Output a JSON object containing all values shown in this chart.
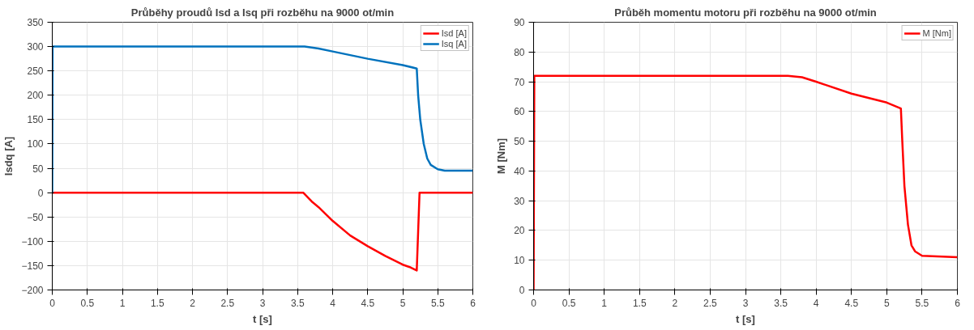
{
  "chart_data": [
    {
      "type": "line",
      "title": "Průběhy proudů Isd a Isq při rozběhu na 9000 ot/min",
      "xlabel": "t [s]",
      "ylabel": "Isdq [A]",
      "xlim": [
        0,
        6
      ],
      "ylim": [
        -200,
        350
      ],
      "xticks": [
        0,
        0.5,
        1,
        1.5,
        2,
        2.5,
        3,
        3.5,
        4,
        4.5,
        5,
        5.5,
        6
      ],
      "yticks": [
        -200,
        -150,
        -100,
        -50,
        0,
        50,
        100,
        150,
        200,
        250,
        300,
        350
      ],
      "grid": true,
      "legend": "top right",
      "series": [
        {
          "name": "Isd [A]",
          "color": "#ff0000",
          "x": [
            0,
            0.5,
            1,
            1.5,
            2,
            2.5,
            3,
            3.5,
            3.58,
            3.7,
            3.8,
            4,
            4.25,
            4.5,
            4.75,
            5,
            5.1,
            5.2,
            5.22,
            5.24,
            5.5,
            6
          ],
          "values": [
            0,
            0,
            0,
            0,
            0,
            0,
            0,
            0,
            0,
            -18,
            -30,
            -58,
            -88,
            -110,
            -130,
            -148,
            -153,
            -160,
            -80,
            0,
            0,
            0
          ]
        },
        {
          "name": "Isq [A]",
          "color": "#0072bd",
          "x": [
            0,
            0.005,
            0.5,
            1,
            2,
            3,
            3.6,
            3.8,
            4,
            4.5,
            5,
            5.2,
            5.22,
            5.25,
            5.3,
            5.35,
            5.4,
            5.5,
            5.6,
            6
          ],
          "values": [
            0,
            300,
            300,
            300,
            300,
            300,
            300,
            296,
            290,
            275,
            262,
            255,
            200,
            150,
            100,
            70,
            57,
            48,
            45,
            45
          ]
        }
      ]
    },
    {
      "type": "line",
      "title": "Průběh momentu motoru při rozběhu na 9000 ot/min",
      "xlabel": "t [s]",
      "ylabel": "M [Nm]",
      "xlim": [
        0,
        6
      ],
      "ylim": [
        0,
        90
      ],
      "xticks": [
        0,
        0.5,
        1,
        1.5,
        2,
        2.5,
        3,
        3.5,
        4,
        4.5,
        5,
        5.5,
        6
      ],
      "yticks": [
        0,
        10,
        20,
        30,
        40,
        50,
        60,
        70,
        80,
        90
      ],
      "grid": true,
      "legend": "top right",
      "series": [
        {
          "name": "M [Nm]",
          "color": "#ff0000",
          "x": [
            0,
            0.01,
            1,
            2,
            3,
            3.6,
            3.8,
            4,
            4.5,
            5,
            5.2,
            5.22,
            5.25,
            5.3,
            5.35,
            5.4,
            5.5,
            6
          ],
          "values": [
            0,
            72,
            72,
            72,
            72,
            72,
            71.5,
            70,
            66,
            63,
            61,
            50,
            35,
            22,
            15,
            13,
            11.5,
            11
          ]
        }
      ]
    }
  ]
}
